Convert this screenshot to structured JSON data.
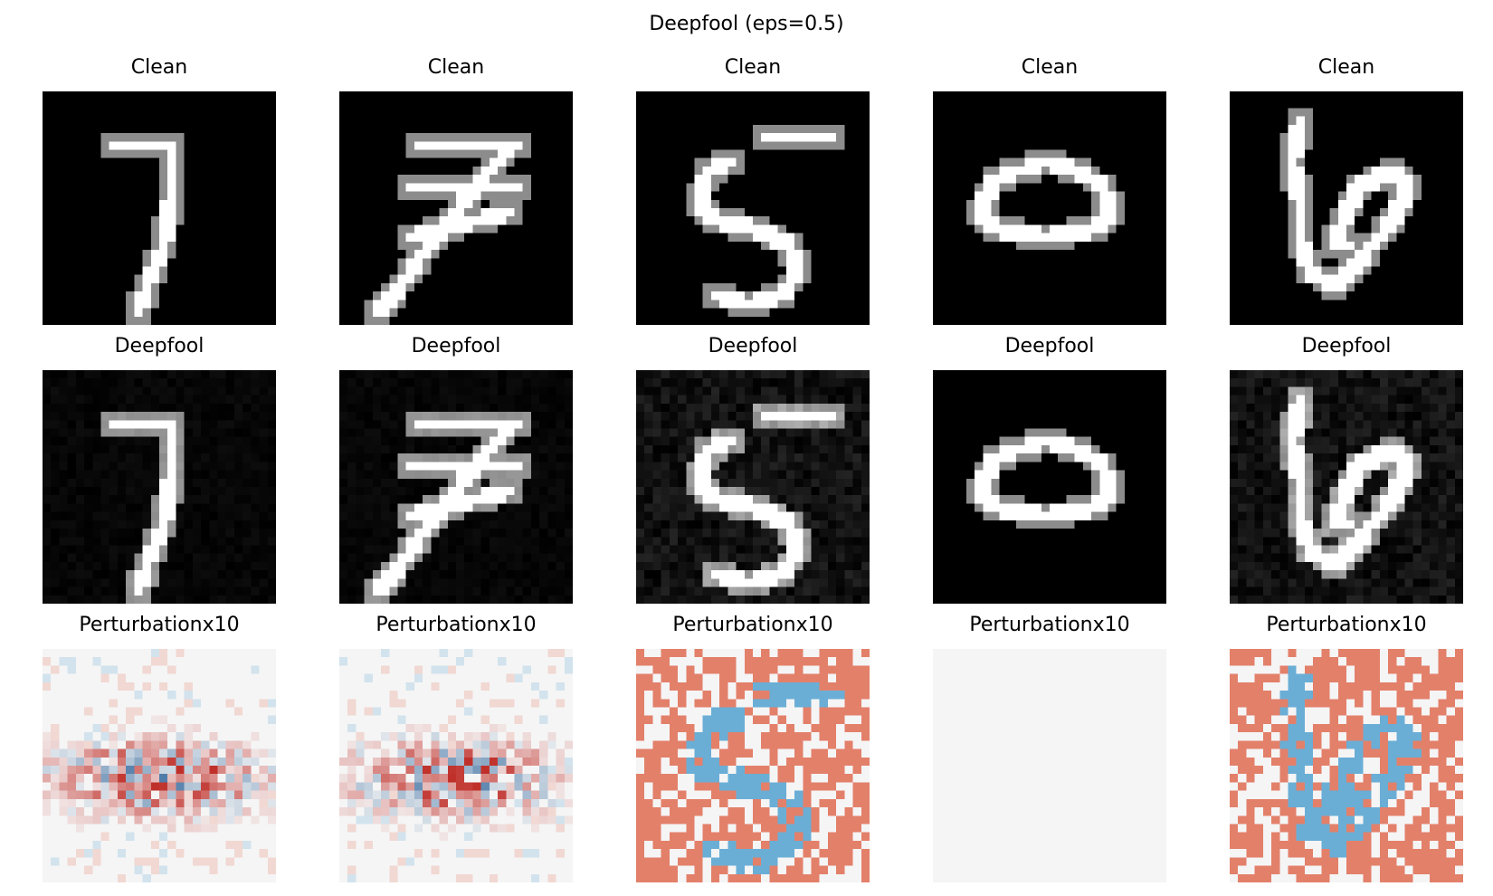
{
  "figure": {
    "title": "Deepfool (eps=0.5)"
  },
  "rows": [
    {
      "label": "Clean",
      "kind": "clean",
      "digits": [
        "7",
        "7",
        "5",
        "0",
        "6"
      ]
    },
    {
      "label": "Deepfool",
      "kind": "adversarial",
      "digits": [
        "7",
        "7",
        "5",
        "0",
        "6"
      ]
    },
    {
      "label": "Perturbationx10",
      "kind": "perturbation",
      "colormap": "RdBu_r",
      "patterns": [
        "sparse-diffuse",
        "sparse-diffuse",
        "saturated-mixed",
        "zero",
        "saturated-mixed"
      ]
    }
  ],
  "colors": {
    "image_background": "#000000",
    "stroke": "#ffffff",
    "positive": "#e3806a",
    "negative": "#6aaed6",
    "neutral": "#f5f5f5",
    "strong_negative": "#0b4a8a",
    "strong_positive": "#c0302a"
  }
}
